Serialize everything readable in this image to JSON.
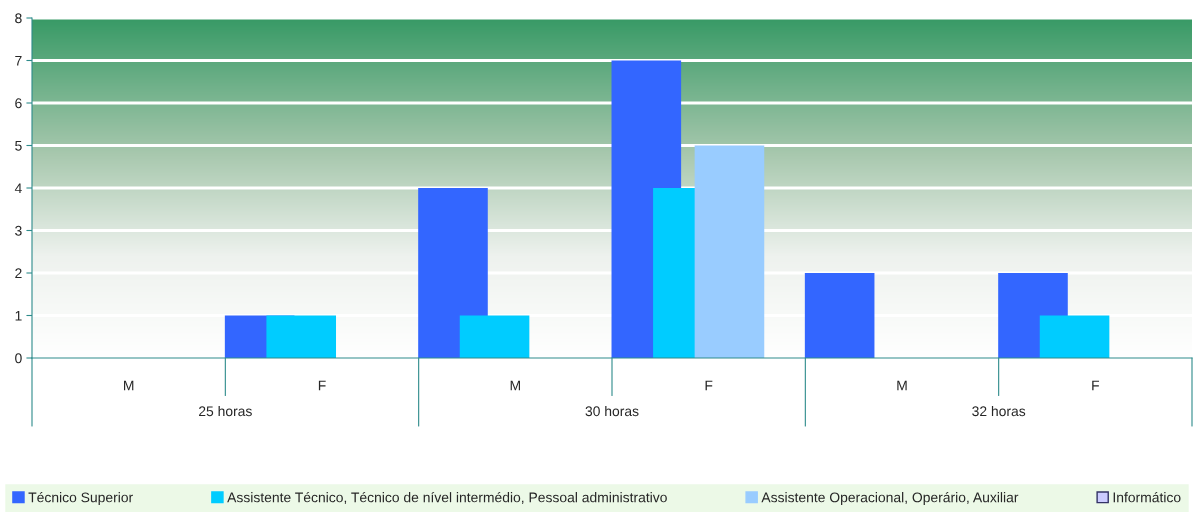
{
  "chart_data": {
    "type": "bar",
    "categories": [
      "M",
      "F",
      "M",
      "F",
      "M",
      "F"
    ],
    "annotations": [
      "25 horas",
      "30 horas",
      "32 horas"
    ],
    "series": [
      {
        "name": "Técnico Superior",
        "color": "#3366ff",
        "values": [
          null,
          1,
          4,
          7,
          2,
          2
        ]
      },
      {
        "name": "Assistente Técnico, Técnico de nível intermédio, Pessoal administrativo",
        "color": "#00ccff",
        "values": [
          null,
          1,
          1,
          4,
          null,
          1
        ]
      },
      {
        "name": "Assistente Operacional, Operário, Auxiliar",
        "color": "#99ccff",
        "values": [
          null,
          null,
          null,
          5,
          null,
          null
        ]
      },
      {
        "name": "Informático",
        "color": "#ccccff",
        "values": [
          null,
          null,
          null,
          null,
          null,
          null
        ]
      }
    ],
    "ylim": [
      0,
      8
    ],
    "yticks": [
      0,
      1,
      2,
      3,
      4,
      5,
      6,
      7,
      8
    ],
    "grid": "y",
    "legend": "bottom"
  }
}
